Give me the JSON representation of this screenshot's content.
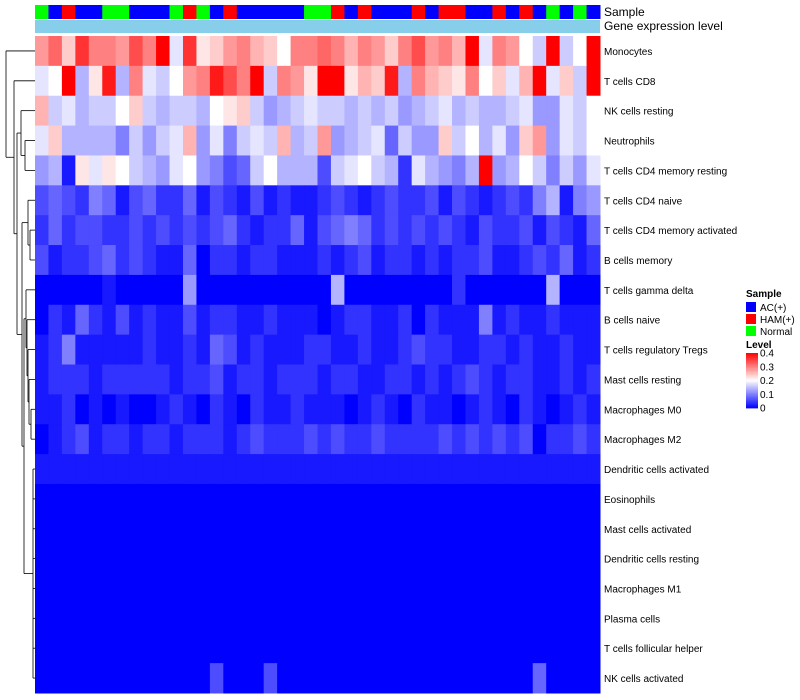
{
  "chart_data": {
    "type": "heatmap",
    "annotation_tracks": [
      {
        "name": "Sample",
        "label": "Sample"
      },
      {
        "name": "Gene expression level",
        "label": "Gene expression level"
      }
    ],
    "sample_groups": [
      "AC(+)",
      "HAM(+)",
      "Normal"
    ],
    "sample_colors": {
      "AC(+)": "#0000ff",
      "HAM(+)": "#ff0000",
      "Normal": "#00ff00"
    },
    "column_samples": [
      "Normal",
      "AC(+)",
      "HAM(+)",
      "AC(+)",
      "AC(+)",
      "Normal",
      "Normal",
      "AC(+)",
      "AC(+)",
      "AC(+)",
      "Normal",
      "HAM(+)",
      "Normal",
      "AC(+)",
      "HAM(+)",
      "AC(+)",
      "AC(+)",
      "AC(+)",
      "AC(+)",
      "AC(+)",
      "Normal",
      "Normal",
      "HAM(+)",
      "AC(+)",
      "HAM(+)",
      "AC(+)",
      "AC(+)",
      "AC(+)",
      "HAM(+)",
      "AC(+)",
      "HAM(+)",
      "HAM(+)",
      "AC(+)",
      "AC(+)",
      "HAM(+)",
      "AC(+)",
      "HAM(+)",
      "AC(+)",
      "Normal",
      "AC(+)",
      "Normal",
      "AC(+)"
    ],
    "expression_track_color": "#87ceeb",
    "rows": [
      "Monocytes",
      "T cells CD8",
      "NK cells resting",
      "Neutrophils",
      "T cells CD4 memory resting",
      "T cells CD4 naive",
      "T cells CD4 memory activated",
      "B cells memory",
      "T cells gamma delta",
      "B cells naive",
      "T cells regulatory  Tregs",
      "Mast cells resting",
      "Macrophages M0",
      "Macrophages M2",
      "Dendritic cells activated",
      "Eosinophils",
      "Mast cells activated",
      "Dendritic cells resting",
      "Macrophages M1",
      "Plasma cells",
      "T cells follicular helper",
      "NK cells activated"
    ],
    "row_levels_approx": {
      "Monocytes": [
        0.28,
        0.32,
        0.24,
        0.36,
        0.3,
        0.3,
        0.28,
        0.34,
        0.3,
        0.4,
        0.18,
        0.36,
        0.22,
        0.24,
        0.28,
        0.3,
        0.26,
        0.24,
        0.2,
        0.3,
        0.3,
        0.32,
        0.3,
        0.26,
        0.3,
        0.28,
        0.24,
        0.3,
        0.34,
        0.28,
        0.3,
        0.26,
        0.4,
        0.18,
        0.3,
        0.28,
        0.2,
        0.16,
        0.4,
        0.16,
        0.2,
        0.4
      ],
      "T cells CD8": [
        0.18,
        0.2,
        0.4,
        0.14,
        0.22,
        0.38,
        0.14,
        0.3,
        0.18,
        0.16,
        0.2,
        0.28,
        0.3,
        0.38,
        0.34,
        0.3,
        0.4,
        0.16,
        0.3,
        0.28,
        0.22,
        0.4,
        0.4,
        0.22,
        0.26,
        0.24,
        0.38,
        0.14,
        0.3,
        0.26,
        0.24,
        0.22,
        0.3,
        0.2,
        0.24,
        0.18,
        0.26,
        0.4,
        0.18,
        0.24,
        0.16,
        0.4
      ],
      "NK cells resting": [
        0.26,
        0.16,
        0.18,
        0.14,
        0.16,
        0.16,
        0.2,
        0.24,
        0.16,
        0.14,
        0.16,
        0.16,
        0.14,
        0.2,
        0.22,
        0.24,
        0.16,
        0.12,
        0.14,
        0.16,
        0.18,
        0.16,
        0.16,
        0.14,
        0.16,
        0.14,
        0.16,
        0.12,
        0.14,
        0.16,
        0.18,
        0.14,
        0.16,
        0.14,
        0.14,
        0.16,
        0.18,
        0.12,
        0.12,
        0.18,
        0.16,
        0.2
      ],
      "Neutrophils": [
        0.18,
        0.24,
        0.14,
        0.14,
        0.14,
        0.14,
        0.1,
        0.16,
        0.12,
        0.16,
        0.18,
        0.26,
        0.12,
        0.18,
        0.1,
        0.16,
        0.18,
        0.16,
        0.26,
        0.14,
        0.16,
        0.28,
        0.12,
        0.14,
        0.16,
        0.18,
        0.08,
        0.16,
        0.12,
        0.12,
        0.24,
        0.16,
        0.2,
        0.14,
        0.18,
        0.12,
        0.24,
        0.28,
        0.12,
        0.18,
        0.16,
        0.2
      ],
      "T cells CD4 memory resting": [
        0.12,
        0.14,
        0.02,
        0.22,
        0.18,
        0.22,
        0.2,
        0.16,
        0.14,
        0.12,
        0.18,
        0.2,
        0.12,
        0.1,
        0.06,
        0.08,
        0.16,
        0.2,
        0.14,
        0.14,
        0.14,
        0.06,
        0.16,
        0.18,
        0.2,
        0.16,
        0.14,
        0.04,
        0.18,
        0.14,
        0.12,
        0.1,
        0.14,
        0.4,
        0.12,
        0.14,
        0.2,
        0.16,
        0.1,
        0.16,
        0.12,
        0.18
      ],
      "T cells CD4 naive": [
        0.06,
        0.08,
        0.06,
        0.04,
        0.1,
        0.08,
        0.02,
        0.06,
        0.08,
        0.04,
        0.04,
        0.08,
        0.02,
        0.06,
        0.04,
        0.02,
        0.06,
        0.02,
        0.04,
        0.02,
        0.02,
        0.04,
        0.06,
        0.04,
        0.02,
        0.04,
        0.06,
        0.04,
        0.04,
        0.06,
        0.02,
        0.06,
        0.04,
        0.02,
        0.04,
        0.06,
        0.04,
        0.1,
        0.14,
        0.02,
        0.1,
        0.12
      ],
      "T cells CD4 memory activated": [
        0.04,
        0.08,
        0.04,
        0.06,
        0.06,
        0.04,
        0.04,
        0.06,
        0.04,
        0.06,
        0.04,
        0.06,
        0.04,
        0.06,
        0.08,
        0.04,
        0.02,
        0.04,
        0.04,
        0.08,
        0.02,
        0.06,
        0.08,
        0.1,
        0.08,
        0.04,
        0.06,
        0.04,
        0.06,
        0.04,
        0.06,
        0.04,
        0.02,
        0.06,
        0.04,
        0.04,
        0.06,
        0.02,
        0.06,
        0.04,
        0.02,
        0.08
      ],
      "B cells memory": [
        0.06,
        0.02,
        0.04,
        0.04,
        0.06,
        0.08,
        0.04,
        0.06,
        0.04,
        0.02,
        0.02,
        0.08,
        0.0,
        0.04,
        0.04,
        0.02,
        0.04,
        0.04,
        0.02,
        0.02,
        0.02,
        0.04,
        0.02,
        0.04,
        0.06,
        0.02,
        0.04,
        0.04,
        0.02,
        0.04,
        0.02,
        0.04,
        0.04,
        0.06,
        0.02,
        0.02,
        0.04,
        0.06,
        0.04,
        0.08,
        0.02,
        0.04
      ],
      "T cells gamma delta": [
        0.0,
        0.0,
        0.0,
        0.0,
        0.0,
        0.02,
        0.0,
        0.0,
        0.0,
        0.0,
        0.0,
        0.12,
        0.0,
        0.0,
        0.0,
        0.0,
        0.0,
        0.0,
        0.0,
        0.0,
        0.0,
        0.0,
        0.14,
        0.0,
        0.0,
        0.0,
        0.0,
        0.0,
        0.0,
        0.0,
        0.0,
        0.04,
        0.0,
        0.0,
        0.0,
        0.0,
        0.0,
        0.0,
        0.14,
        0.0,
        0.0,
        0.0
      ],
      "B cells naive": [
        0.0,
        0.04,
        0.02,
        0.08,
        0.04,
        0.02,
        0.06,
        0.02,
        0.04,
        0.02,
        0.02,
        0.06,
        0.02,
        0.04,
        0.04,
        0.02,
        0.02,
        0.04,
        0.02,
        0.02,
        0.02,
        0.0,
        0.02,
        0.04,
        0.04,
        0.02,
        0.02,
        0.04,
        0.0,
        0.04,
        0.02,
        0.02,
        0.02,
        0.1,
        0.02,
        0.04,
        0.02,
        0.02,
        0.04,
        0.02,
        0.02,
        0.02
      ],
      "T cells regulatory  Tregs": [
        0.02,
        0.04,
        0.1,
        0.02,
        0.02,
        0.02,
        0.02,
        0.02,
        0.04,
        0.02,
        0.02,
        0.04,
        0.02,
        0.08,
        0.06,
        0.02,
        0.04,
        0.02,
        0.02,
        0.02,
        0.04,
        0.04,
        0.02,
        0.02,
        0.04,
        0.02,
        0.02,
        0.04,
        0.06,
        0.04,
        0.04,
        0.02,
        0.02,
        0.04,
        0.04,
        0.02,
        0.04,
        0.02,
        0.02,
        0.04,
        0.02,
        0.02
      ],
      "Mast cells resting": [
        0.02,
        0.04,
        0.04,
        0.04,
        0.02,
        0.04,
        0.04,
        0.04,
        0.04,
        0.04,
        0.02,
        0.04,
        0.04,
        0.06,
        0.02,
        0.04,
        0.04,
        0.02,
        0.04,
        0.04,
        0.04,
        0.02,
        0.04,
        0.04,
        0.02,
        0.02,
        0.04,
        0.04,
        0.02,
        0.04,
        0.02,
        0.04,
        0.06,
        0.04,
        0.02,
        0.04,
        0.04,
        0.02,
        0.02,
        0.04,
        0.02,
        0.04
      ],
      "Macrophages M0": [
        0.02,
        0.02,
        0.04,
        0.0,
        0.02,
        0.0,
        0.02,
        0.0,
        0.0,
        0.02,
        0.04,
        0.02,
        0.0,
        0.04,
        0.02,
        0.0,
        0.04,
        0.02,
        0.02,
        0.04,
        0.02,
        0.02,
        0.02,
        0.0,
        0.02,
        0.04,
        0.02,
        0.0,
        0.04,
        0.02,
        0.02,
        0.0,
        0.02,
        0.04,
        0.02,
        0.0,
        0.04,
        0.02,
        0.0,
        0.02,
        0.04,
        0.02
      ],
      "Macrophages M2": [
        0.0,
        0.02,
        0.04,
        0.06,
        0.02,
        0.04,
        0.04,
        0.02,
        0.04,
        0.04,
        0.02,
        0.04,
        0.04,
        0.04,
        0.02,
        0.04,
        0.06,
        0.04,
        0.04,
        0.04,
        0.06,
        0.04,
        0.06,
        0.04,
        0.04,
        0.06,
        0.04,
        0.04,
        0.04,
        0.04,
        0.06,
        0.04,
        0.06,
        0.04,
        0.06,
        0.04,
        0.06,
        0.0,
        0.04,
        0.04,
        0.06,
        0.04
      ],
      "Dendritic cells activated": [
        0.02,
        0.02,
        0.02,
        0.02,
        0.02,
        0.02,
        0.02,
        0.02,
        0.02,
        0.02,
        0.02,
        0.02,
        0.02,
        0.02,
        0.02,
        0.02,
        0.02,
        0.02,
        0.02,
        0.02,
        0.02,
        0.02,
        0.02,
        0.02,
        0.02,
        0.02,
        0.02,
        0.02,
        0.02,
        0.02,
        0.02,
        0.02,
        0.02,
        0.02,
        0.02,
        0.02,
        0.02,
        0.02,
        0.02,
        0.02,
        0.02,
        0.02
      ],
      "Eosinophils": [
        0,
        0,
        0,
        0,
        0,
        0,
        0,
        0,
        0,
        0,
        0,
        0,
        0,
        0,
        0,
        0,
        0,
        0,
        0,
        0,
        0,
        0,
        0,
        0,
        0,
        0,
        0,
        0,
        0,
        0,
        0,
        0,
        0,
        0,
        0,
        0,
        0,
        0,
        0,
        0,
        0,
        0
      ],
      "Mast cells activated": [
        0,
        0,
        0,
        0,
        0,
        0,
        0,
        0,
        0,
        0,
        0,
        0,
        0,
        0,
        0,
        0,
        0,
        0,
        0,
        0,
        0,
        0,
        0,
        0,
        0,
        0,
        0,
        0,
        0,
        0,
        0,
        0,
        0,
        0,
        0,
        0,
        0,
        0,
        0,
        0,
        0,
        0
      ],
      "Dendritic cells resting": [
        0,
        0,
        0,
        0,
        0,
        0,
        0,
        0,
        0,
        0,
        0,
        0,
        0,
        0,
        0,
        0,
        0,
        0,
        0,
        0,
        0,
        0,
        0,
        0,
        0,
        0,
        0,
        0,
        0,
        0,
        0,
        0,
        0,
        0,
        0,
        0,
        0,
        0,
        0,
        0,
        0,
        0
      ],
      "Macrophages M1": [
        0,
        0,
        0,
        0,
        0,
        0,
        0,
        0,
        0,
        0,
        0,
        0,
        0,
        0,
        0,
        0,
        0,
        0,
        0,
        0,
        0,
        0,
        0,
        0,
        0,
        0,
        0,
        0,
        0,
        0,
        0,
        0,
        0,
        0,
        0,
        0,
        0,
        0,
        0,
        0,
        0,
        0
      ],
      "Plasma cells": [
        0,
        0,
        0,
        0,
        0,
        0,
        0,
        0,
        0,
        0,
        0,
        0,
        0,
        0,
        0,
        0,
        0,
        0,
        0,
        0,
        0,
        0,
        0,
        0,
        0,
        0,
        0,
        0,
        0,
        0,
        0,
        0,
        0,
        0,
        0,
        0,
        0,
        0,
        0,
        0,
        0,
        0
      ],
      "T cells follicular helper": [
        0,
        0,
        0,
        0,
        0,
        0,
        0,
        0,
        0,
        0,
        0,
        0,
        0,
        0,
        0,
        0,
        0,
        0,
        0,
        0,
        0,
        0,
        0,
        0,
        0,
        0,
        0,
        0,
        0,
        0,
        0,
        0,
        0,
        0,
        0,
        0,
        0,
        0,
        0,
        0,
        0,
        0
      ],
      "NK cells activated": [
        0,
        0,
        0,
        0,
        0,
        0,
        0,
        0,
        0,
        0,
        0,
        0,
        0,
        0.06,
        0,
        0,
        0,
        0.06,
        0,
        0,
        0,
        0,
        0,
        0,
        0,
        0,
        0,
        0,
        0,
        0,
        0,
        0,
        0,
        0,
        0,
        0,
        0,
        0.08,
        0,
        0,
        0,
        0
      ]
    },
    "color_scale": {
      "low": "#0000ff",
      "mid": "#ffffff",
      "high": "#ff0000",
      "min": 0,
      "max": 0.4,
      "ticks": [
        "0",
        "0.1",
        "0.2",
        "0.3",
        "0.4"
      ]
    },
    "legend": {
      "sample_title": "Sample",
      "level_title": "Level",
      "placement": "right"
    },
    "row_dendrogram": true
  }
}
